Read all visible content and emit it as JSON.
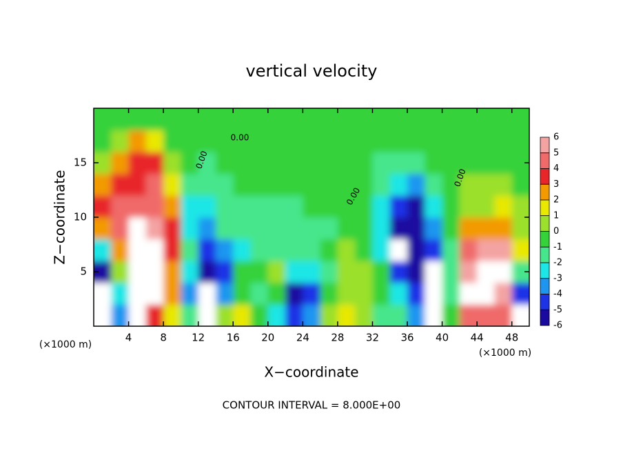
{
  "chart_data": {
    "type": "heatmap",
    "title": "vertical velocity",
    "x_label": "X−coordinate",
    "y_label": "Z−coordinate",
    "x_unit_labels": [
      "(×1000 m)",
      "(×1000 m)"
    ],
    "footer": "CONTOUR INTERVAL = 8.000E+00",
    "contour_labels": [
      "0.00",
      "0.00",
      "0.00",
      "0.00"
    ],
    "xlim": [
      0,
      50
    ],
    "ylim": [
      0,
      20
    ],
    "xticks": [
      4,
      8,
      12,
      16,
      20,
      24,
      28,
      32,
      36,
      40,
      44,
      48
    ],
    "yticks": [
      5,
      10,
      15
    ],
    "cbar_ticks": [
      6,
      5,
      4,
      3,
      2,
      1,
      0,
      -1,
      -2,
      -3,
      -4,
      -5,
      -6
    ],
    "colors": [
      "#f4a3a3",
      "#f06a6a",
      "#e8262a",
      "#f39a00",
      "#e8e800",
      "#9be02c",
      "#36d23a",
      "#46e68c",
      "#1ee6e6",
      "#1e96f0",
      "#1e32e6",
      "#1a0aa0",
      "#8c14c8"
    ],
    "x": [
      1,
      3,
      5,
      7,
      9,
      11,
      13,
      15,
      17,
      19,
      21,
      23,
      25,
      27,
      29,
      31,
      33,
      35,
      37,
      39,
      41,
      43,
      45,
      47,
      49
    ],
    "y": [
      1,
      3,
      5,
      7,
      9,
      11,
      13,
      15,
      17,
      19
    ],
    "values": [
      [
        -8,
        -3,
        8,
        4,
        2,
        -1,
        -7,
        1,
        2,
        0,
        -2,
        -4,
        -3,
        1,
        2,
        1,
        -1,
        -1,
        -3,
        -8,
        0,
        5,
        5,
        5,
        -7
      ],
      [
        -7,
        -2,
        9,
        8,
        3,
        -3,
        -7,
        -3,
        0,
        -1,
        0,
        -5,
        -4,
        0,
        1,
        1,
        0,
        -2,
        -4,
        -7,
        -1,
        7,
        8,
        6,
        -4
      ],
      [
        -5,
        1,
        9,
        7,
        3,
        -2,
        -5,
        -4,
        0,
        0,
        1,
        -2,
        -2,
        -1,
        1,
        1,
        0,
        -4,
        -5,
        -7,
        -1,
        6,
        8,
        7,
        -1
      ],
      [
        -2,
        3,
        8,
        7,
        4,
        -1,
        -4,
        -3,
        -2,
        -1,
        -1,
        -1,
        -1,
        0,
        1,
        0,
        -2,
        -7,
        -5,
        -4,
        -1,
        5,
        6,
        6,
        2
      ],
      [
        3,
        5,
        7,
        6,
        4,
        -2,
        -3,
        -1,
        -1,
        -1,
        -1,
        -1,
        -1,
        -1,
        0,
        0,
        -2,
        -5,
        -5,
        -3,
        0,
        3,
        3,
        3,
        1
      ],
      [
        4,
        5,
        5,
        5,
        3,
        -2,
        -2,
        -1,
        -1,
        -1,
        -1,
        -1,
        0,
        0,
        0,
        0,
        -2,
        -4,
        -5,
        -2,
        0,
        1,
        1,
        2,
        1
      ],
      [
        3,
        4,
        4,
        5,
        2,
        -1,
        -1,
        -1,
        0,
        0,
        0,
        0,
        0,
        0,
        0,
        0,
        -1,
        -2,
        -3,
        -1,
        0,
        1,
        1,
        1,
        0
      ],
      [
        1,
        3,
        4,
        4,
        1,
        0,
        -1,
        0,
        0,
        0,
        0,
        0,
        0,
        0,
        0,
        0,
        -1,
        -1,
        -1,
        0,
        0,
        0,
        0,
        0,
        0
      ],
      [
        0,
        1,
        3,
        2,
        0,
        0,
        0,
        0,
        0,
        0,
        0,
        0,
        0,
        0,
        0,
        0,
        0,
        0,
        0,
        0,
        0,
        0,
        0,
        0,
        0
      ],
      [
        0,
        0,
        0,
        0,
        0,
        0,
        0,
        0,
        0,
        0,
        0,
        0,
        0,
        0,
        0,
        0,
        0,
        0,
        0,
        0,
        0,
        0,
        0,
        0,
        0
      ]
    ]
  }
}
